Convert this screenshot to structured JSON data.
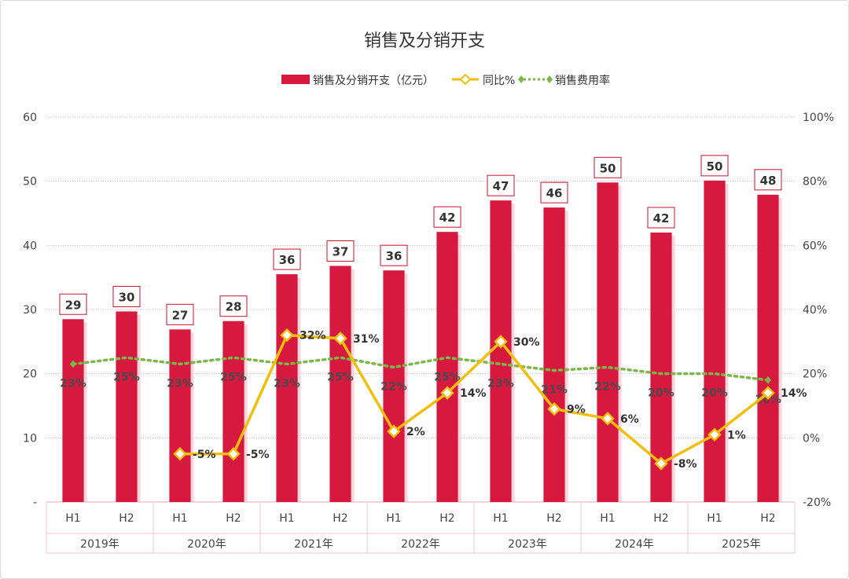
{
  "chart_data": {
    "type": "bar",
    "title": "销售及分销开支",
    "legend": [
      "销售及分销开支（亿元）",
      "同比%",
      "销售费用率"
    ],
    "legend_position": "top",
    "grid": true,
    "years": [
      "2019年",
      "2020年",
      "2021年",
      "2022年",
      "2023年",
      "2024年",
      "2025年"
    ],
    "halves": [
      "H1",
      "H2"
    ],
    "y_left": {
      "min": 0,
      "max": 60,
      "ticks": [
        "-",
        "10",
        "20",
        "30",
        "40",
        "50",
        "60"
      ]
    },
    "y_right": {
      "min": -20,
      "max": 100,
      "ticks": [
        "-20%",
        "0%",
        "20%",
        "40%",
        "60%",
        "80%",
        "100%"
      ]
    },
    "series": [
      {
        "name": "销售及分销开支（亿元）",
        "kind": "bar",
        "axis": "left",
        "color": "#d7193f",
        "values": [
          28.5,
          29.7,
          26.9,
          28.2,
          35.5,
          36.8,
          36.1,
          42.1,
          47.0,
          45.9,
          49.8,
          42.0,
          50.1,
          47.9
        ],
        "labels": [
          "29",
          "30",
          "27",
          "28",
          "36",
          "37",
          "36",
          "42",
          "47",
          "46",
          "50",
          "42",
          "50",
          "48"
        ]
      },
      {
        "name": "同比%",
        "kind": "line",
        "axis": "right",
        "color": "#f1bf0b",
        "values": [
          null,
          null,
          -5,
          -5,
          32,
          31,
          2,
          14,
          30,
          9,
          6,
          -8,
          1,
          14
        ],
        "labels": [
          "",
          "",
          "-5%",
          "-5%",
          "32%",
          "31%",
          "2%",
          "14%",
          "30%",
          "9%",
          "6%",
          "-8%",
          "1%",
          "14%"
        ]
      },
      {
        "name": "销售费用率",
        "kind": "line",
        "style": "dotted",
        "axis": "right",
        "color": "#7ab648",
        "values": [
          23,
          25,
          23,
          25,
          23,
          25,
          22,
          25,
          23,
          21,
          22,
          20,
          20,
          18
        ],
        "labels": [
          "23%",
          "25%",
          "23%",
          "25%",
          "23%",
          "25%",
          "22%",
          "25%",
          "23%",
          "21%",
          "22%",
          "20%",
          "20%",
          "18%"
        ]
      }
    ]
  }
}
